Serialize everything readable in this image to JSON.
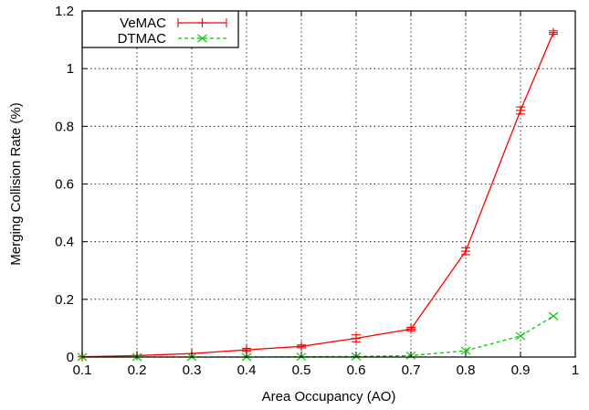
{
  "chart_data": {
    "type": "line",
    "title": "",
    "xlabel": "Area Occupancy (AO)",
    "ylabel": "Merging Collision Rate (%)",
    "xlim": [
      0.1,
      1.0
    ],
    "ylim": [
      0,
      1.2
    ],
    "x_ticks": [
      "0.1",
      "0.2",
      "0.3",
      "0.4",
      "0.5",
      "0.6",
      "0.7",
      "0.8",
      "0.9",
      "1"
    ],
    "y_ticks": [
      "0",
      "0.2",
      "0.4",
      "0.6",
      "0.8",
      "1",
      "1.2"
    ],
    "grid": true,
    "legend_position": "top-left",
    "series": [
      {
        "name": "VeMAC",
        "color": "#ff0000",
        "line_style": "solid",
        "marker": "+",
        "x": [
          0.1,
          0.2,
          0.3,
          0.4,
          0.5,
          0.6,
          0.7,
          0.8,
          0.9,
          0.96
        ],
        "y": [
          0.001,
          0.005,
          0.012,
          0.025,
          0.037,
          0.065,
          0.097,
          0.367,
          0.855,
          1.125
        ],
        "err": [
          0,
          0,
          0,
          0.005,
          0.005,
          0.012,
          0.006,
          0.012,
          0.012,
          0.006
        ]
      },
      {
        "name": "DTMAC",
        "color": "#00cc00",
        "line_style": "dashed",
        "marker": "x",
        "x": [
          0.1,
          0.2,
          0.3,
          0.4,
          0.5,
          0.6,
          0.7,
          0.8,
          0.9,
          0.96
        ],
        "y": [
          0.0,
          0.0,
          0.0,
          0.0,
          0.001,
          0.002,
          0.005,
          0.022,
          0.073,
          0.142
        ],
        "err": [
          0,
          0,
          0,
          0,
          0,
          0,
          0,
          0,
          0,
          0
        ]
      }
    ]
  }
}
